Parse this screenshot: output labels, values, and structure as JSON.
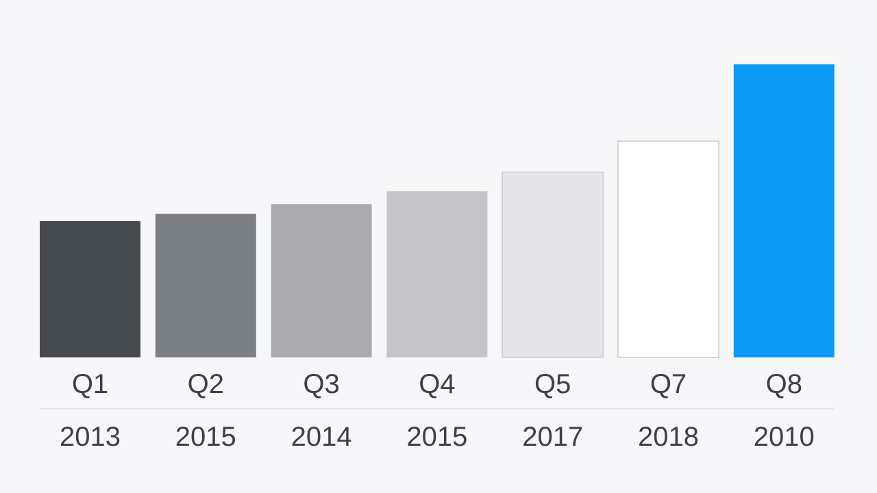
{
  "chart_data": {
    "type": "bar",
    "title": "",
    "xlabel": "",
    "ylabel": "",
    "categories": [
      "Q1",
      "Q2",
      "Q3",
      "Q4",
      "Q5",
      "Q7",
      "Q8"
    ],
    "years": [
      "2013",
      "2015",
      "2014",
      "2015",
      "2017",
      "2018",
      "2010"
    ],
    "values": [
      46.5,
      49,
      52.3,
      56.7,
      63.2,
      73.8,
      100
    ],
    "ylim": [
      0,
      100
    ],
    "colors": [
      "#454a4e",
      "#7a8084",
      "#a9adb0",
      "#c3c6c8",
      "#e5e6e7",
      "#ffffff",
      "#0a9bf7"
    ],
    "grid": false,
    "legend": "none"
  }
}
